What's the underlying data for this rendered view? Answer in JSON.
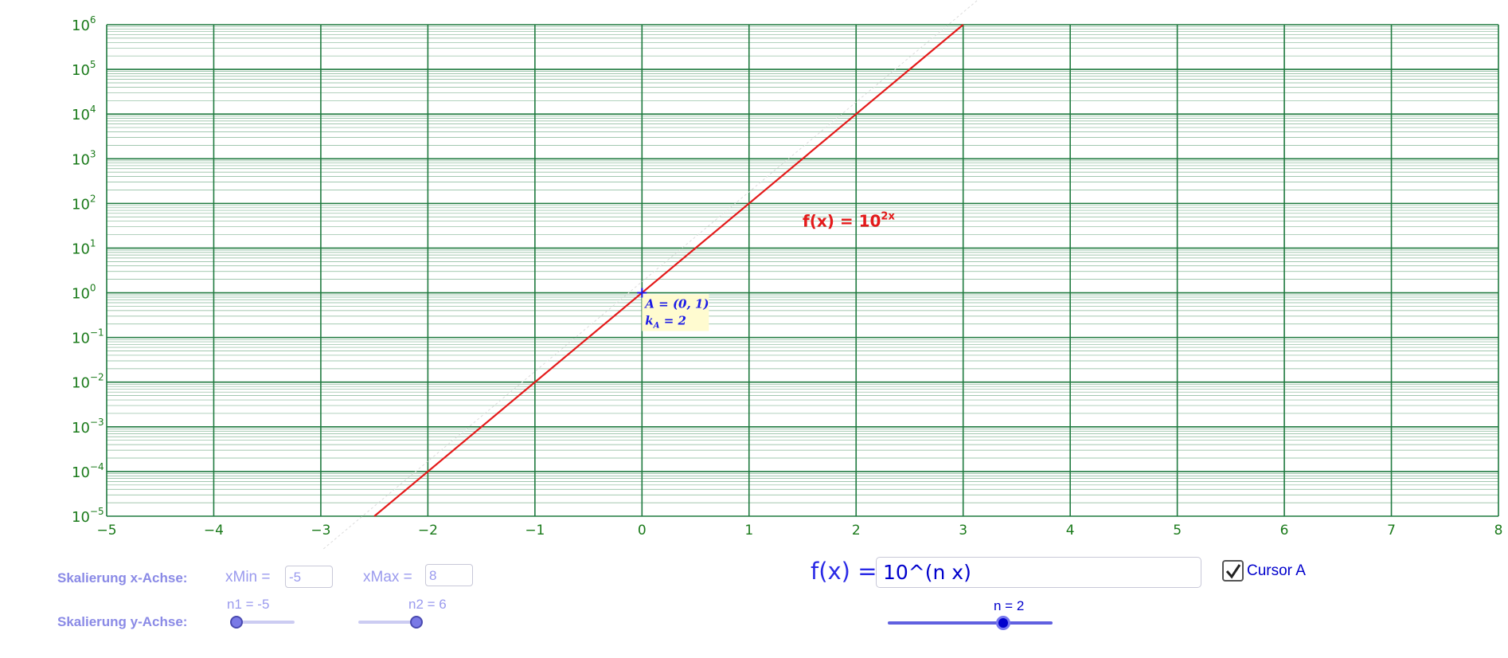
{
  "plot": {
    "function_label": {
      "base": "f(x) = 10",
      "exponent": "2x"
    },
    "point_label_line1": "A = (0, 1)",
    "point_label_line2": "k",
    "point_label_line2_sub": "A",
    "point_label_line2_rest": " = 2",
    "x_axis_ticks": [
      "−5",
      "−4",
      "−3",
      "−2",
      "−1",
      "0",
      "1",
      "2",
      "3",
      "4",
      "5",
      "6",
      "7",
      "8"
    ],
    "y_axis_ticks": [
      {
        "base": "10",
        "exp": "6"
      },
      {
        "base": "10",
        "exp": "5"
      },
      {
        "base": "10",
        "exp": "4"
      },
      {
        "base": "10",
        "exp": "3"
      },
      {
        "base": "10",
        "exp": "2"
      },
      {
        "base": "10",
        "exp": "1"
      },
      {
        "base": "10",
        "exp": "0"
      },
      {
        "base": "10",
        "exp": "−1"
      },
      {
        "base": "10",
        "exp": "−2"
      },
      {
        "base": "10",
        "exp": "−3"
      },
      {
        "base": "10",
        "exp": "−4"
      },
      {
        "base": "10",
        "exp": "−5"
      }
    ]
  },
  "chart_data": {
    "type": "line",
    "x_range": [
      -5,
      8
    ],
    "y_range": [
      1e-05,
      1000000.0
    ],
    "y_scale": "log",
    "grid": true,
    "series": [
      {
        "name": "f(x) = 10^(2x)",
        "x": [
          -2.5,
          3
        ],
        "y": [
          1e-05,
          1000000
        ]
      }
    ],
    "points": [
      {
        "name": "A",
        "x": 0,
        "y": 1
      }
    ]
  },
  "controls": {
    "x_scale_label": "Skalierung x-Achse:",
    "y_scale_label": "Skalierung y-Achse:",
    "xmin_label": "xMin =",
    "xmin_value": "-5",
    "xmax_label": "xMax =",
    "xmax_value": "8",
    "n1_label": "n1 = -5",
    "n1_level": 0,
    "n2_label": "n2 = 6",
    "n2_level": 1,
    "fx_label": "f(x) =",
    "fx_value": "10^(n x)",
    "n_label": "n = 2",
    "n_level": 0.7,
    "cursor_label": "Cursor A",
    "cursor_checked": true
  },
  "colors": {
    "grid": "#1f7a3f",
    "axis_text": "#1a7a1a",
    "curve": "#e41a1a",
    "point": "#1a1ae6",
    "label_bg": "#fffbd0",
    "control_text": "#8a8ae6"
  }
}
